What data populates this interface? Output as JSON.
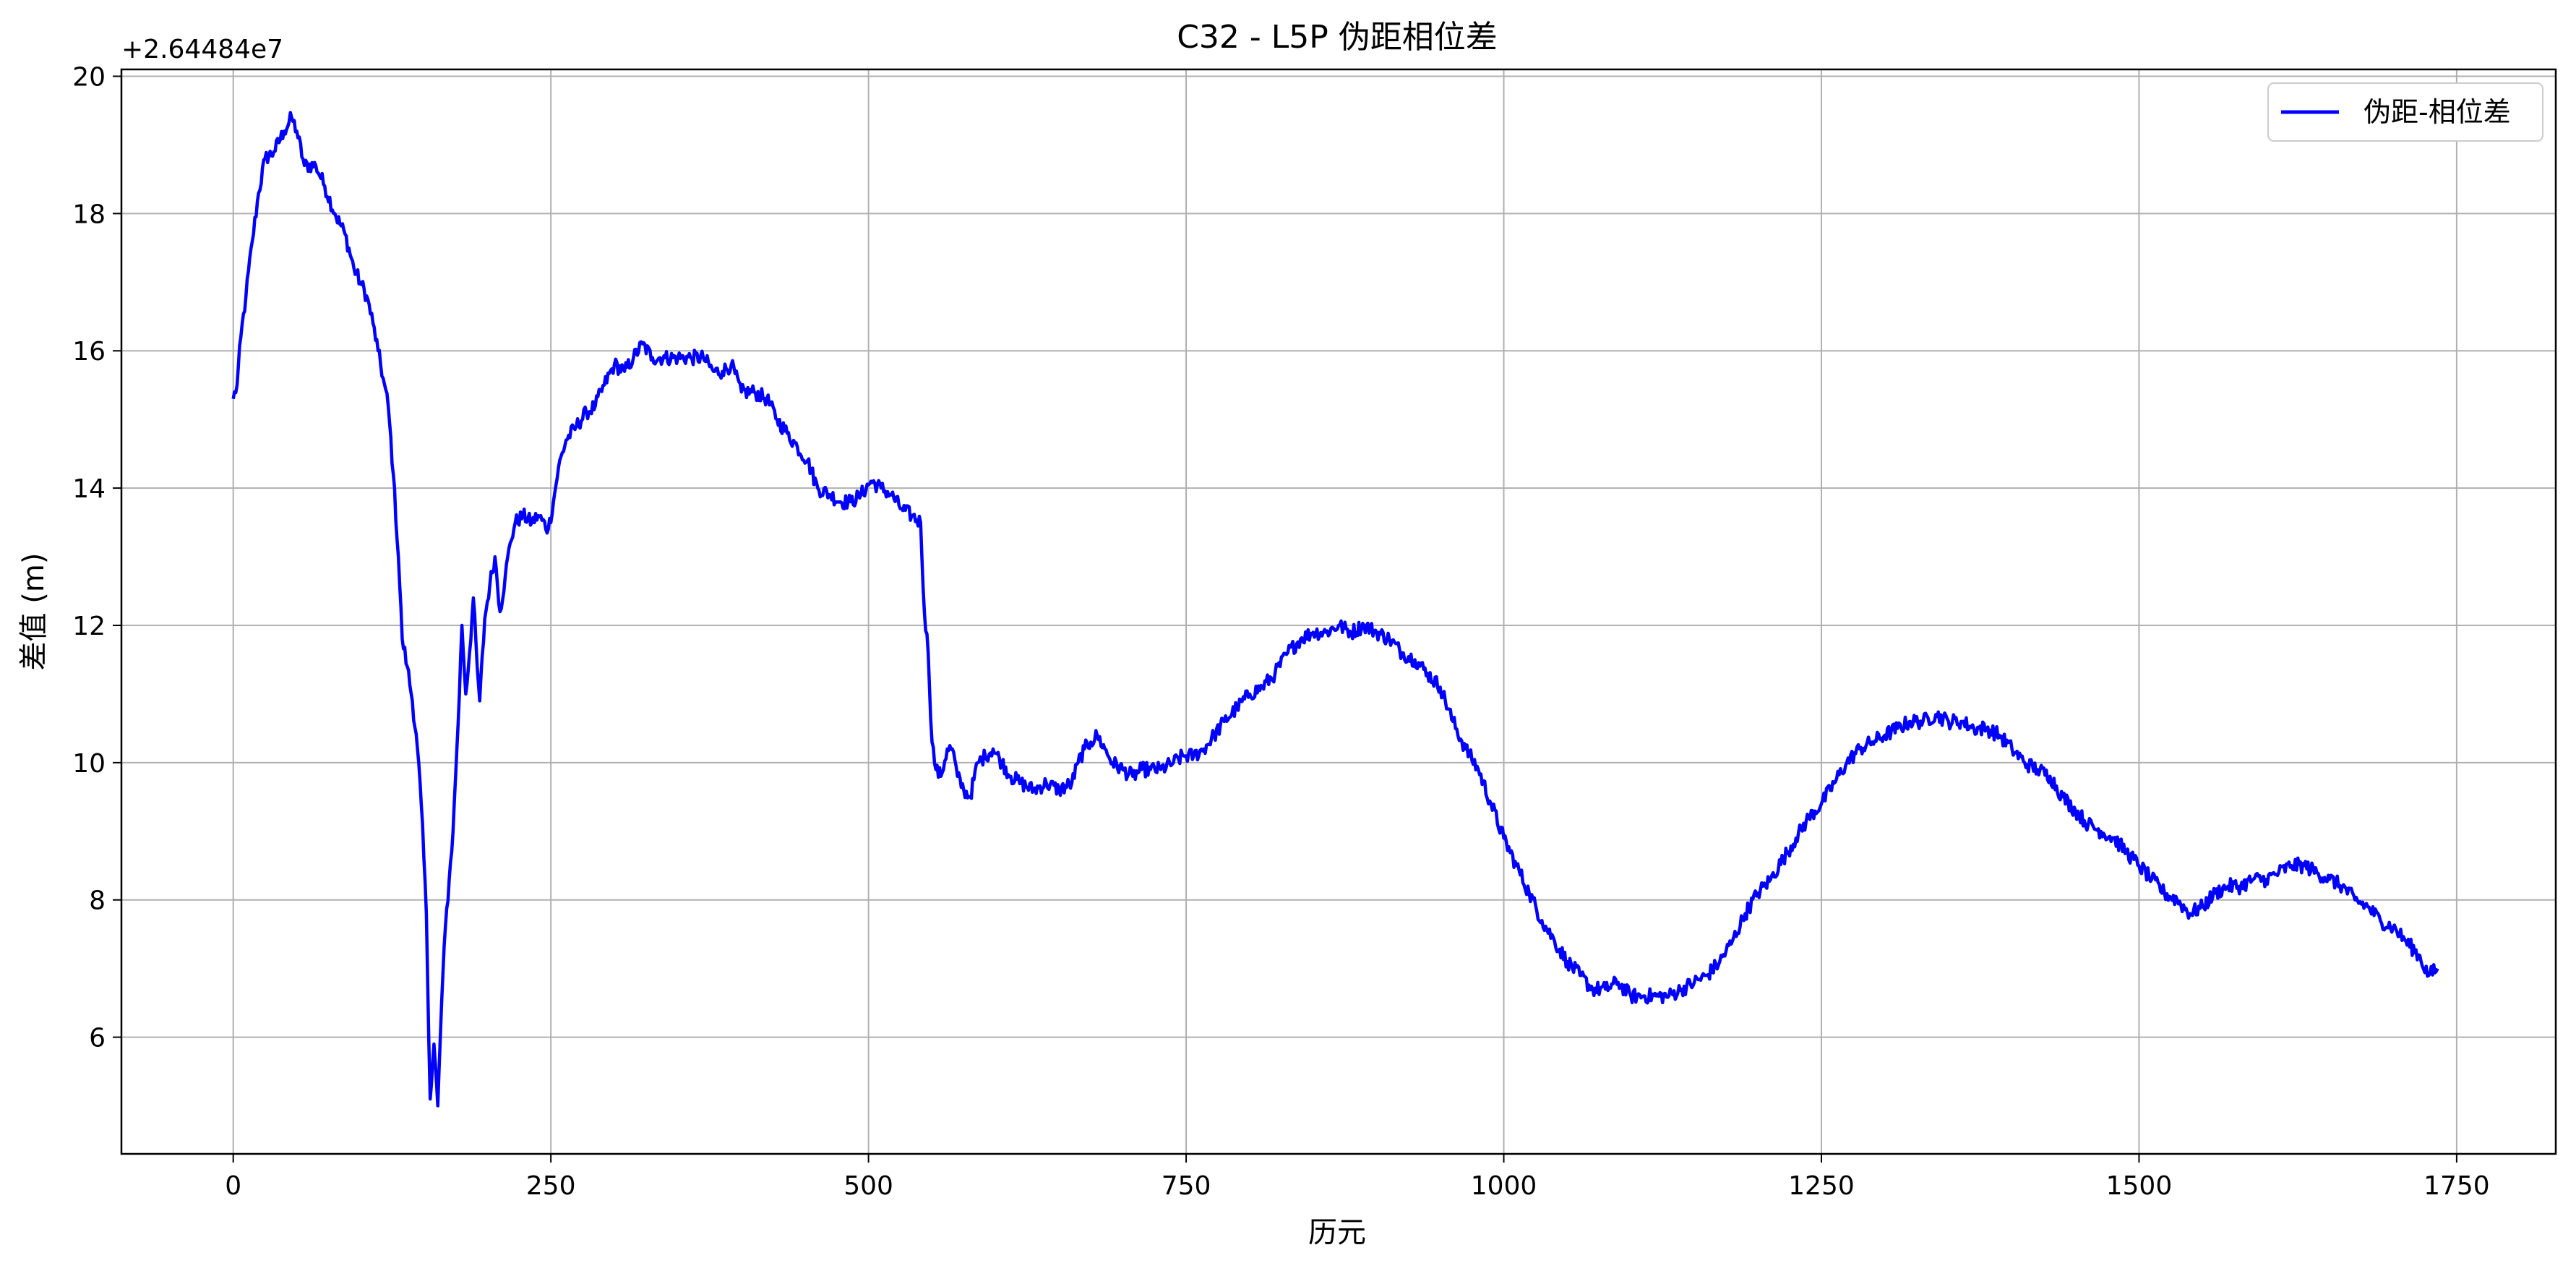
{
  "chart_data": {
    "type": "line",
    "title": "C32 - L5P 伪距相位差",
    "xlabel": "历元",
    "ylabel": "差值 (m)",
    "y_offset_label": "+2.64484e7",
    "xlim": [
      -88,
      1828
    ],
    "ylim": [
      4.3,
      20.1
    ],
    "xticks": [
      0,
      250,
      500,
      750,
      1000,
      1250,
      1500,
      1750
    ],
    "yticks": [
      6,
      8,
      10,
      12,
      14,
      16,
      18,
      20
    ],
    "grid": true,
    "legend_position": "top-right",
    "series": [
      {
        "name": "伪距-相位差",
        "color": "#0000ff",
        "anchors": [
          [
            0,
            15.3
          ],
          [
            3,
            15.5
          ],
          [
            6,
            16.2
          ],
          [
            10,
            16.8
          ],
          [
            15,
            17.6
          ],
          [
            20,
            18.3
          ],
          [
            25,
            18.8
          ],
          [
            32,
            18.9
          ],
          [
            40,
            19.2
          ],
          [
            46,
            19.4
          ],
          [
            50,
            19.2
          ],
          [
            56,
            18.7
          ],
          [
            65,
            18.7
          ],
          [
            72,
            18.4
          ],
          [
            80,
            18.0
          ],
          [
            88,
            17.7
          ],
          [
            95,
            17.2
          ],
          [
            100,
            17.0
          ],
          [
            105,
            16.8
          ],
          [
            110,
            16.4
          ],
          [
            114,
            16.0
          ],
          [
            118,
            15.6
          ],
          [
            122,
            15.2
          ],
          [
            126,
            14.2
          ],
          [
            130,
            13.0
          ],
          [
            133,
            11.8
          ],
          [
            137,
            11.4
          ],
          [
            141,
            10.9
          ],
          [
            145,
            10.2
          ],
          [
            148,
            9.4
          ],
          [
            152,
            7.8
          ],
          [
            155,
            5.1
          ],
          [
            158,
            5.9
          ],
          [
            161,
            5.0
          ],
          [
            164,
            6.5
          ],
          [
            167,
            7.6
          ],
          [
            170,
            8.3
          ],
          [
            173,
            9.0
          ],
          [
            176,
            10.2
          ],
          [
            178,
            11.0
          ],
          [
            180,
            12.0
          ],
          [
            183,
            11.0
          ],
          [
            186,
            11.6
          ],
          [
            189,
            12.4
          ],
          [
            192,
            11.4
          ],
          [
            194,
            10.9
          ],
          [
            198,
            12.1
          ],
          [
            202,
            12.6
          ],
          [
            206,
            13.0
          ],
          [
            210,
            12.2
          ],
          [
            214,
            12.7
          ],
          [
            218,
            13.2
          ],
          [
            222,
            13.5
          ],
          [
            228,
            13.6
          ],
          [
            235,
            13.5
          ],
          [
            240,
            13.6
          ],
          [
            248,
            13.4
          ],
          [
            252,
            13.8
          ],
          [
            256,
            14.3
          ],
          [
            262,
            14.7
          ],
          [
            270,
            14.9
          ],
          [
            278,
            15.1
          ],
          [
            285,
            15.2
          ],
          [
            292,
            15.5
          ],
          [
            300,
            15.8
          ],
          [
            308,
            15.7
          ],
          [
            315,
            15.9
          ],
          [
            322,
            16.1
          ],
          [
            330,
            15.9
          ],
          [
            340,
            15.9
          ],
          [
            350,
            15.9
          ],
          [
            360,
            15.9
          ],
          [
            370,
            15.9
          ],
          [
            378,
            15.7
          ],
          [
            385,
            15.7
          ],
          [
            392,
            15.8
          ],
          [
            400,
            15.4
          ],
          [
            410,
            15.4
          ],
          [
            420,
            15.3
          ],
          [
            428,
            15.0
          ],
          [
            436,
            14.8
          ],
          [
            444,
            14.6
          ],
          [
            452,
            14.4
          ],
          [
            460,
            14.0
          ],
          [
            470,
            13.9
          ],
          [
            478,
            13.8
          ],
          [
            486,
            13.8
          ],
          [
            494,
            13.9
          ],
          [
            502,
            14.1
          ],
          [
            510,
            14.0
          ],
          [
            518,
            13.9
          ],
          [
            526,
            13.7
          ],
          [
            534,
            13.6
          ],
          [
            541,
            13.5
          ],
          [
            544,
            12.2
          ],
          [
            547,
            11.6
          ],
          [
            550,
            10.3
          ],
          [
            553,
            9.9
          ],
          [
            557,
            9.8
          ],
          [
            562,
            10.2
          ],
          [
            566,
            10.2
          ],
          [
            570,
            9.8
          ],
          [
            575,
            9.6
          ],
          [
            580,
            9.5
          ],
          [
            586,
            10.0
          ],
          [
            592,
            10.1
          ],
          [
            598,
            10.2
          ],
          [
            605,
            10.0
          ],
          [
            612,
            9.8
          ],
          [
            620,
            9.7
          ],
          [
            630,
            9.6
          ],
          [
            640,
            9.7
          ],
          [
            650,
            9.6
          ],
          [
            660,
            9.7
          ],
          [
            665,
            10.0
          ],
          [
            670,
            10.2
          ],
          [
            675,
            10.3
          ],
          [
            680,
            10.4
          ],
          [
            686,
            10.2
          ],
          [
            692,
            10.0
          ],
          [
            700,
            9.9
          ],
          [
            708,
            9.8
          ],
          [
            715,
            9.9
          ],
          [
            722,
            9.9
          ],
          [
            730,
            9.9
          ],
          [
            740,
            10.0
          ],
          [
            748,
            10.1
          ],
          [
            756,
            10.1
          ],
          [
            764,
            10.2
          ],
          [
            772,
            10.4
          ],
          [
            780,
            10.6
          ],
          [
            790,
            10.8
          ],
          [
            800,
            11.0
          ],
          [
            810,
            11.1
          ],
          [
            820,
            11.3
          ],
          [
            830,
            11.6
          ],
          [
            840,
            11.8
          ],
          [
            850,
            11.9
          ],
          [
            860,
            11.9
          ],
          [
            870,
            12.0
          ],
          [
            880,
            11.9
          ],
          [
            890,
            12.0
          ],
          [
            900,
            11.9
          ],
          [
            910,
            11.8
          ],
          [
            920,
            11.6
          ],
          [
            930,
            11.5
          ],
          [
            940,
            11.3
          ],
          [
            950,
            11.1
          ],
          [
            960,
            10.6
          ],
          [
            970,
            10.2
          ],
          [
            980,
            9.9
          ],
          [
            990,
            9.4
          ],
          [
            1000,
            8.9
          ],
          [
            1010,
            8.5
          ],
          [
            1020,
            8.1
          ],
          [
            1030,
            7.7
          ],
          [
            1040,
            7.4
          ],
          [
            1050,
            7.1
          ],
          [
            1060,
            6.9
          ],
          [
            1070,
            6.7
          ],
          [
            1080,
            6.7
          ],
          [
            1090,
            6.8
          ],
          [
            1100,
            6.6
          ],
          [
            1110,
            6.6
          ],
          [
            1120,
            6.6
          ],
          [
            1130,
            6.6
          ],
          [
            1140,
            6.7
          ],
          [
            1150,
            6.8
          ],
          [
            1160,
            6.9
          ],
          [
            1170,
            7.1
          ],
          [
            1180,
            7.4
          ],
          [
            1190,
            7.8
          ],
          [
            1200,
            8.1
          ],
          [
            1210,
            8.3
          ],
          [
            1220,
            8.6
          ],
          [
            1230,
            8.9
          ],
          [
            1240,
            9.2
          ],
          [
            1250,
            9.4
          ],
          [
            1260,
            9.7
          ],
          [
            1270,
            10.0
          ],
          [
            1280,
            10.2
          ],
          [
            1290,
            10.3
          ],
          [
            1300,
            10.4
          ],
          [
            1310,
            10.5
          ],
          [
            1320,
            10.6
          ],
          [
            1330,
            10.6
          ],
          [
            1340,
            10.7
          ],
          [
            1350,
            10.6
          ],
          [
            1360,
            10.6
          ],
          [
            1370,
            10.5
          ],
          [
            1380,
            10.5
          ],
          [
            1390,
            10.4
          ],
          [
            1400,
            10.2
          ],
          [
            1410,
            10.0
          ],
          [
            1420,
            9.9
          ],
          [
            1430,
            9.8
          ],
          [
            1440,
            9.5
          ],
          [
            1450,
            9.3
          ],
          [
            1460,
            9.1
          ],
          [
            1470,
            9.0
          ],
          [
            1480,
            8.9
          ],
          [
            1490,
            8.7
          ],
          [
            1500,
            8.5
          ],
          [
            1510,
            8.3
          ],
          [
            1520,
            8.1
          ],
          [
            1530,
            8.0
          ],
          [
            1540,
            7.8
          ],
          [
            1550,
            7.9
          ],
          [
            1560,
            8.1
          ],
          [
            1570,
            8.2
          ],
          [
            1580,
            8.2
          ],
          [
            1590,
            8.3
          ],
          [
            1600,
            8.3
          ],
          [
            1610,
            8.4
          ],
          [
            1620,
            8.5
          ],
          [
            1630,
            8.5
          ],
          [
            1640,
            8.4
          ],
          [
            1650,
            8.3
          ],
          [
            1660,
            8.2
          ],
          [
            1670,
            8.0
          ],
          [
            1680,
            7.9
          ],
          [
            1690,
            7.7
          ],
          [
            1700,
            7.6
          ],
          [
            1710,
            7.4
          ],
          [
            1720,
            7.2
          ],
          [
            1728,
            6.9
          ],
          [
            1735,
            7.0
          ]
        ]
      }
    ]
  }
}
